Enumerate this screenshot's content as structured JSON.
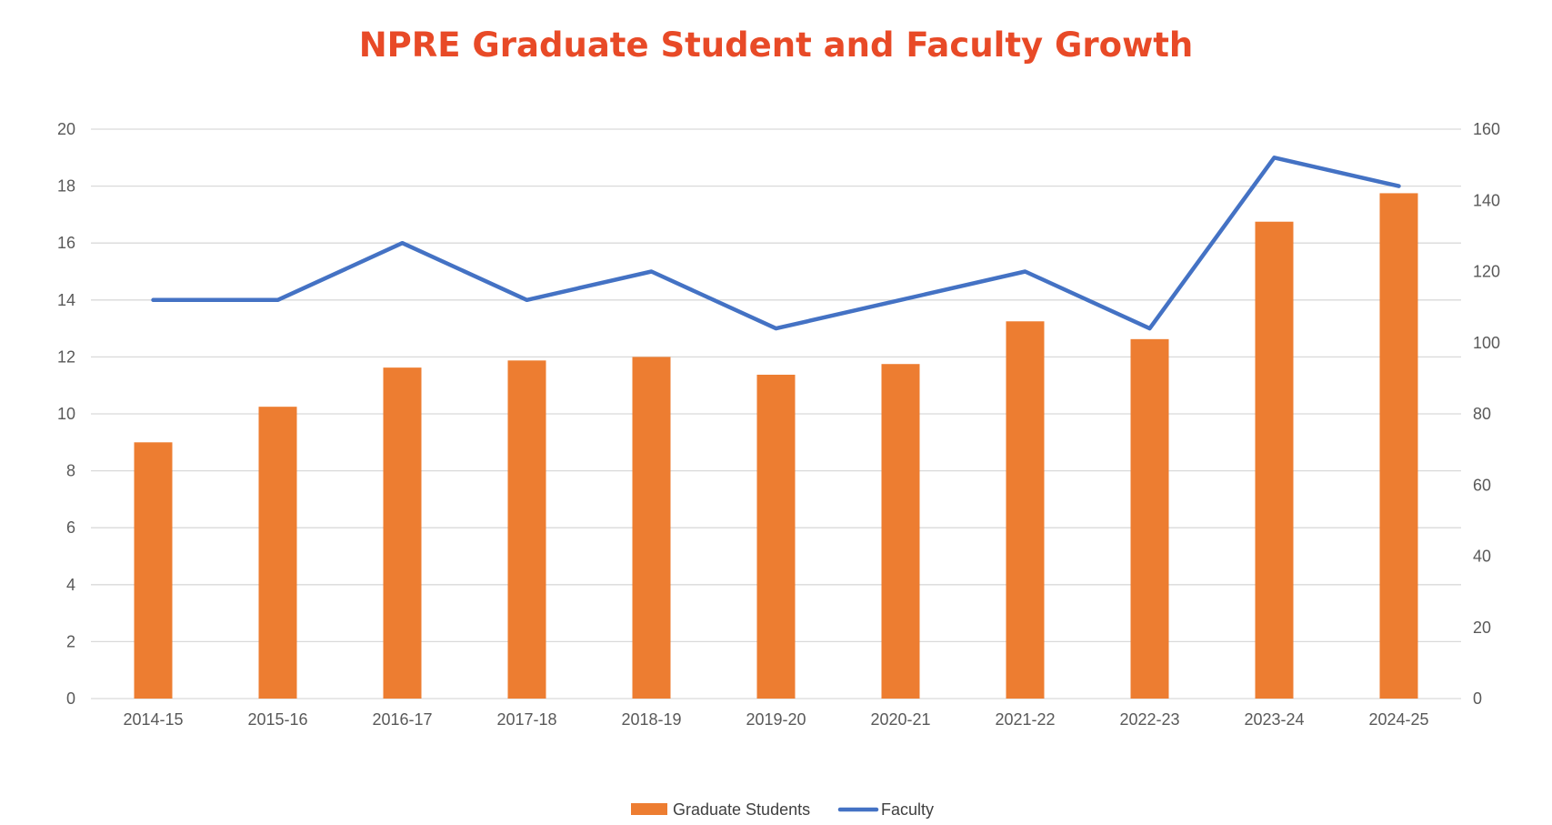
{
  "chart_data": {
    "type": "bar",
    "title": "NPRE Graduate Student and Faculty Growth",
    "categories": [
      "2014-15",
      "2015-16",
      "2016-17",
      "2017-18",
      "2018-19",
      "2019-20",
      "2020-21",
      "2021-22",
      "2022-23",
      "2023-24",
      "2024-25"
    ],
    "series": [
      {
        "name": "Graduate Students",
        "type": "bar",
        "axis": "right",
        "color": "#ED7D31",
        "values": [
          72,
          82,
          93,
          95,
          96,
          91,
          94,
          106,
          101,
          134,
          142
        ]
      },
      {
        "name": "Faculty",
        "type": "line",
        "axis": "left",
        "color": "#4472C4",
        "values": [
          14,
          14,
          16,
          14,
          15,
          13,
          14,
          15,
          13,
          19,
          18
        ]
      }
    ],
    "y_left": {
      "min": 0,
      "max": 20,
      "ticks": [
        "0",
        "2",
        "4",
        "6",
        "8",
        "10",
        "12",
        "14",
        "16",
        "18",
        "20"
      ]
    },
    "y_right": {
      "min": 0,
      "max": 160,
      "ticks": [
        "0",
        "20",
        "40",
        "60",
        "80",
        "100",
        "120",
        "140",
        "160"
      ]
    },
    "grid": true,
    "legend": "bottom-center"
  }
}
